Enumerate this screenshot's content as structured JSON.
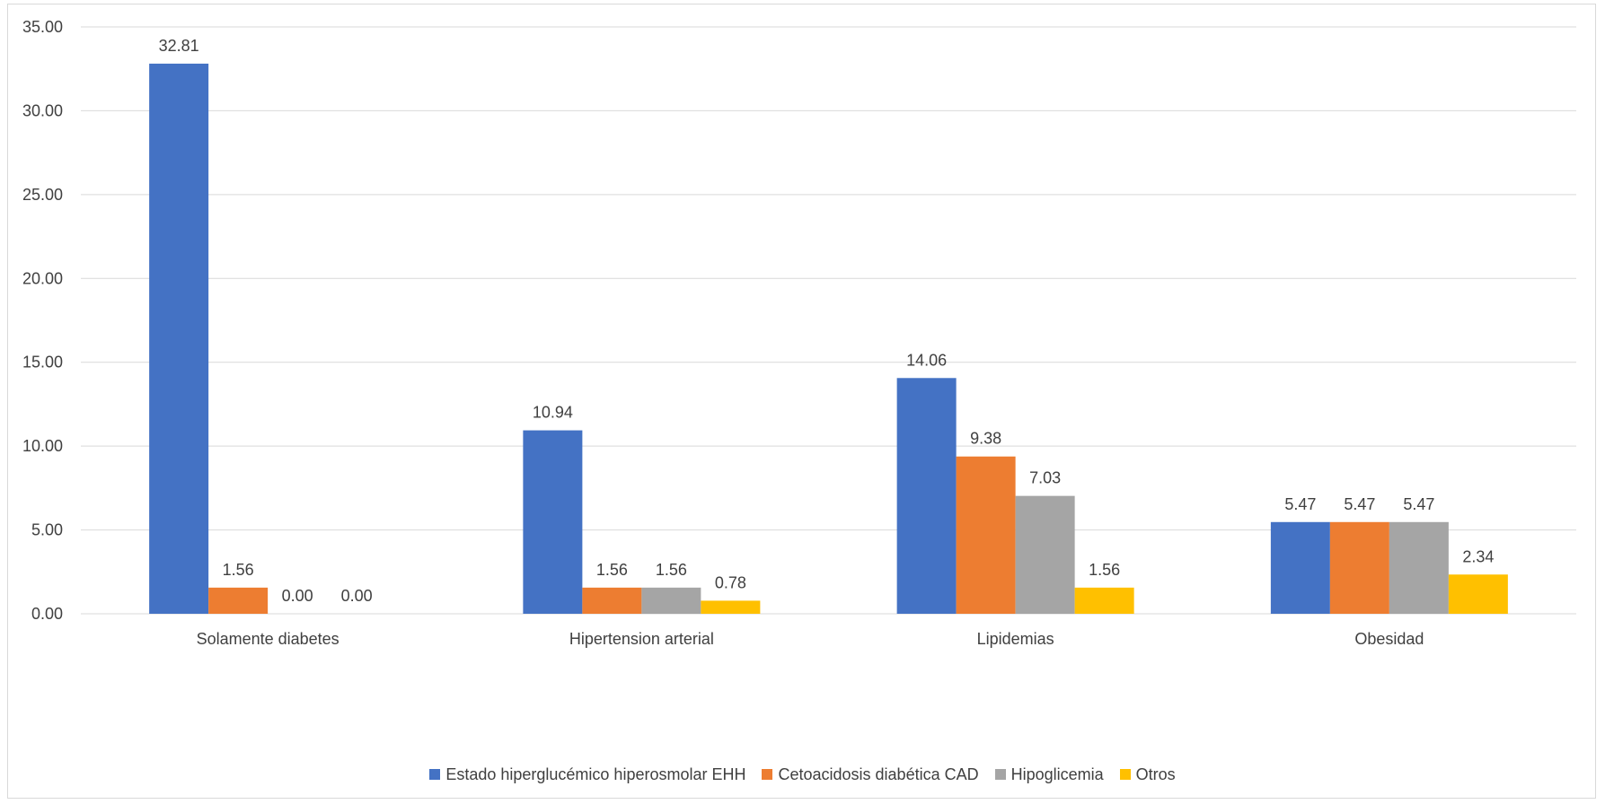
{
  "chart_data": {
    "type": "bar",
    "categories": [
      "Solamente diabetes",
      "Hipertension arterial",
      "Lipidemias",
      "Obesidad"
    ],
    "series": [
      {
        "name": "Estado hiperglucémico hiperosmolar EHH",
        "color": "#4472c4",
        "values": [
          32.81,
          10.94,
          14.06,
          5.47
        ],
        "labels": [
          "32.81",
          "10.94",
          "14.06",
          "5.47"
        ]
      },
      {
        "name": "Cetoacidosis diabética CAD",
        "color": "#ed7d31",
        "values": [
          1.56,
          1.56,
          9.38,
          5.47
        ],
        "labels": [
          "1.56",
          "1.56",
          "9.38",
          "5.47"
        ]
      },
      {
        "name": "Hipoglicemia",
        "color": "#a5a5a5",
        "values": [
          0.0,
          1.56,
          7.03,
          5.47
        ],
        "labels": [
          "0.00",
          "1.56",
          "7.03",
          "5.47"
        ]
      },
      {
        "name": "Otros",
        "color": "#ffc000",
        "values": [
          0.0,
          0.78,
          1.56,
          2.34
        ],
        "labels": [
          "0.00",
          "0.78",
          "1.56",
          "2.34"
        ]
      }
    ],
    "yticks": [
      "0.00",
      "5.00",
      "10.00",
      "15.00",
      "20.00",
      "25.00",
      "30.00",
      "35.00"
    ],
    "ylim": [
      0,
      35
    ],
    "title": "",
    "xlabel": "",
    "ylabel": "",
    "grid": true,
    "legend_position": "bottom"
  }
}
